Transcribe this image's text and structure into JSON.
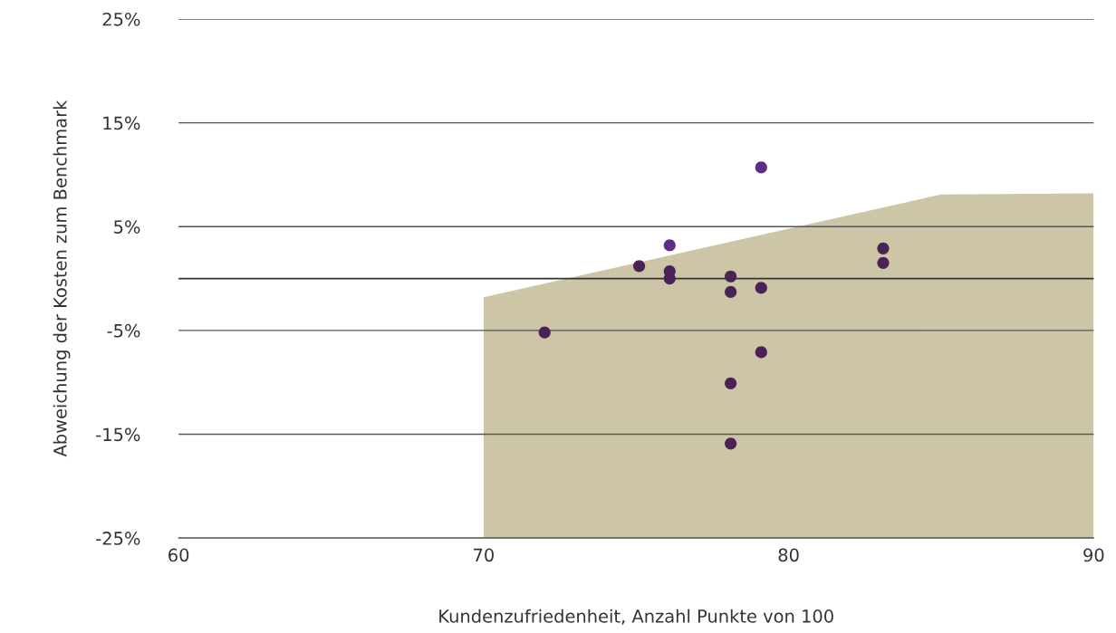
{
  "chart_data": {
    "type": "area",
    "xlabel": "Kundenzufriedenheit, Anzahl Punkte von 100",
    "ylabel": "Abweichung der Kosten zum Benchmark",
    "xlim": [
      60,
      90
    ],
    "xticks": [
      60,
      70,
      80,
      90
    ],
    "ylim": [
      -25,
      25
    ],
    "yticks": [
      {
        "value": 25,
        "label": "25%"
      },
      {
        "value": 15,
        "label": "15%"
      },
      {
        "value": 5,
        "label": "5%"
      },
      {
        "value": -5,
        "label": "-5%"
      },
      {
        "value": -15,
        "label": "-15%"
      },
      {
        "value": -25,
        "label": "-25%"
      }
    ],
    "grid": "y",
    "ref_lines": [
      {
        "axis": "y",
        "value": 0,
        "color": "#333333"
      }
    ],
    "series": [
      {
        "color": "#ccc6a7",
        "x": [
          70,
          70,
          85,
          90,
          90
        ],
        "values": [
          -25,
          -1.8,
          8.1,
          8.2,
          -25
        ]
      },
      {
        "type": "scatter",
        "marker": "circle",
        "x": [
          72,
          75.1,
          76.1,
          76.1,
          76.1,
          78.1,
          78.1,
          78.1,
          78.1,
          79.1,
          79.1,
          79.1,
          83.1,
          83.1
        ],
        "values": [
          -5.2,
          1.2,
          3.2,
          0.7,
          0.0,
          0.2,
          -1.3,
          -10.1,
          -15.9,
          10.7,
          -0.9,
          -7.1,
          2.9,
          1.5
        ],
        "colors": [
          "#4a2256",
          "#4a2256",
          "#5e2d84",
          "#4a2256",
          "#4a2256",
          "#4a2256",
          "#4a2256",
          "#4a2256",
          "#4a2256",
          "#5e2d84",
          "#4a2256",
          "#4a2256",
          "#4a2256",
          "#4a2256"
        ]
      }
    ]
  }
}
